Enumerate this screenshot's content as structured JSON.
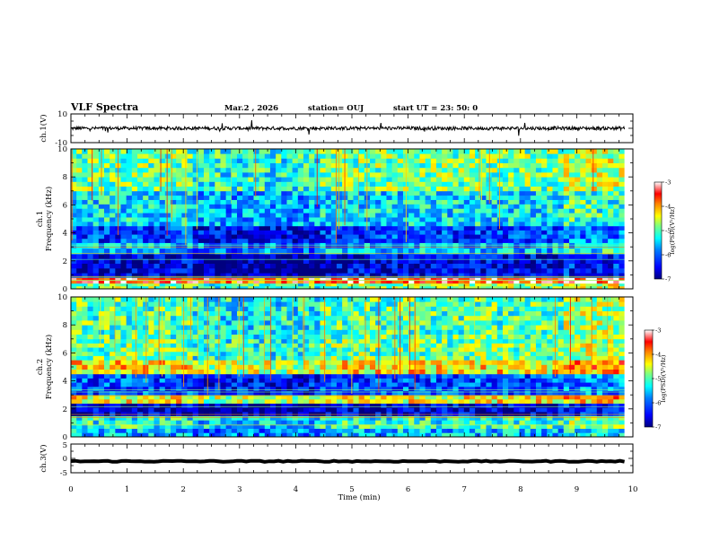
{
  "header": {
    "title": "VLF Spectra",
    "date": "Mar.2 , 2026",
    "station": "station= OUJ",
    "start": "start UT = 23: 50: 0"
  },
  "colors": {
    "colormap": [
      "#00007f",
      "#0000ff",
      "#007fff",
      "#00ffff",
      "#7fff7f",
      "#ffff00",
      "#ff7f00",
      "#ff0000",
      "#ffffff"
    ],
    "trace": "#000000"
  },
  "chart_data": [
    {
      "type": "line",
      "name": "ch1",
      "ylabel": "ch.1(V)",
      "yticks": [
        "10",
        "-10"
      ],
      "ylim": [
        -10,
        10
      ],
      "level": 0,
      "noise_amplitude": 1.2,
      "xlim": [
        0,
        9.85
      ]
    },
    {
      "type": "heatmap",
      "name": "ch1-spectrogram",
      "ylabel_channel": "ch.1",
      "ylabel": "Frequency (kHz)",
      "yticks": [
        "0",
        "2",
        "4",
        "6",
        "8",
        "10"
      ],
      "ylim": [
        0,
        10
      ],
      "xlim": [
        0,
        9.85
      ],
      "colorbar": {
        "label": "log(PSD)(V²/Hz)",
        "ticks": [
          "-3",
          "-4",
          "-5",
          "-6",
          "-7"
        ],
        "range": [
          -7,
          -3
        ]
      },
      "bands": [
        {
          "f": [
            0,
            0.4
          ],
          "value": -4.8
        },
        {
          "f": [
            0.4,
            0.8
          ],
          "value": -3.4
        },
        {
          "f": [
            0.8,
            2.5
          ],
          "value": -6.6
        },
        {
          "f": [
            2.5,
            3.3
          ],
          "value": -5.6
        },
        {
          "f": [
            3.3,
            4.5
          ],
          "value": -6.2
        },
        {
          "f": [
            4.5,
            7.0
          ],
          "value": -5.4
        },
        {
          "f": [
            7.0,
            10
          ],
          "value": -4.9
        }
      ]
    },
    {
      "type": "heatmap",
      "name": "ch2-spectrogram",
      "ylabel_channel": "ch.2",
      "ylabel": "Frequency (kHz)",
      "yticks": [
        "0",
        "2",
        "4",
        "6",
        "8",
        "10"
      ],
      "ylim": [
        0,
        10
      ],
      "xlim": [
        0,
        9.85
      ],
      "colorbar": {
        "label": "log(PSD)(V²/Hz)",
        "ticks": [
          "-3",
          "-4",
          "-5",
          "-6",
          "-7"
        ],
        "range": [
          -7,
          -3
        ]
      },
      "bands": [
        {
          "f": [
            0,
            0.6
          ],
          "value": -5.6
        },
        {
          "f": [
            0.6,
            1.5
          ],
          "value": -5.2
        },
        {
          "f": [
            1.5,
            2.4
          ],
          "value": -6.6
        },
        {
          "f": [
            2.4,
            3.0
          ],
          "value": -4.4
        },
        {
          "f": [
            3.0,
            4.5
          ],
          "value": -6.1
        },
        {
          "f": [
            4.5,
            5.5
          ],
          "value": -4.3
        },
        {
          "f": [
            5.5,
            7.0
          ],
          "value": -4.9
        },
        {
          "f": [
            7.0,
            10
          ],
          "value": -5.0
        }
      ]
    },
    {
      "type": "line",
      "name": "ch3",
      "ylabel": "ch.3(V)",
      "yticks": [
        "5",
        "0",
        "-5"
      ],
      "ylim": [
        -5,
        5
      ],
      "level": -1,
      "noise_amplitude": 0.2,
      "xlim": [
        0,
        9.85
      ],
      "xlabel": "Time (min)",
      "xticks": [
        "0",
        "1",
        "2",
        "3",
        "4",
        "5",
        "6",
        "7",
        "8",
        "9",
        "10"
      ],
      "xrange": [
        0,
        10
      ]
    }
  ]
}
